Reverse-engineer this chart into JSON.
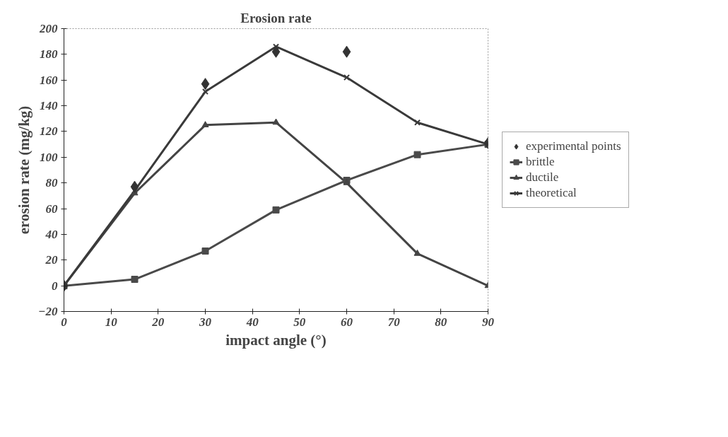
{
  "chart_data": {
    "type": "line",
    "title": "Erosion rate",
    "xlabel": "impact angle (°)",
    "ylabel": "erosion rate (mg/kg)",
    "x": [
      0,
      15,
      30,
      45,
      60,
      75,
      90
    ],
    "series": [
      {
        "name": "experimental points",
        "type": "scatter",
        "marker": "diamond",
        "color": "#333333",
        "values": [
          0,
          77,
          157,
          182,
          182,
          null,
          111
        ]
      },
      {
        "name": "brittle",
        "marker": "square",
        "color": "#4a4a4a",
        "values": [
          0,
          5,
          27,
          59,
          82,
          102,
          110
        ]
      },
      {
        "name": "ductile",
        "marker": "triangle",
        "color": "#444444",
        "values": [
          0,
          72,
          125,
          127,
          80,
          25,
          0
        ]
      },
      {
        "name": "theoretical",
        "marker": "cross",
        "color": "#3a3a3a",
        "values": [
          0,
          74,
          151,
          186,
          162,
          127,
          110
        ]
      }
    ],
    "xlim": [
      0,
      90
    ],
    "xticks": [
      0,
      10,
      20,
      30,
      40,
      50,
      60,
      70,
      80,
      90
    ],
    "ylim": [
      -20,
      200
    ],
    "yticks": [
      -20,
      0,
      20,
      40,
      60,
      80,
      100,
      120,
      140,
      160,
      180,
      200
    ],
    "grid": false,
    "legend": "right",
    "line_style": "solid"
  }
}
